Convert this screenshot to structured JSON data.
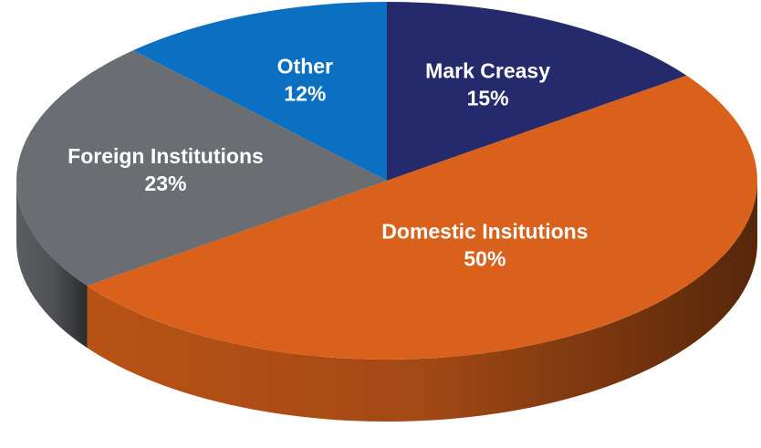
{
  "chart_data": {
    "type": "pie",
    "categories": [
      "Mark Creasy",
      "Domestic Insitutions",
      "Foreign Institutions",
      "Other"
    ],
    "values": [
      15,
      50,
      23,
      12
    ],
    "value_labels": [
      "15%",
      "50%",
      "23%",
      "12%"
    ],
    "colors": [
      "#252a6c",
      "#d9611b",
      "#6a6d72",
      "#0b70c1"
    ]
  }
}
